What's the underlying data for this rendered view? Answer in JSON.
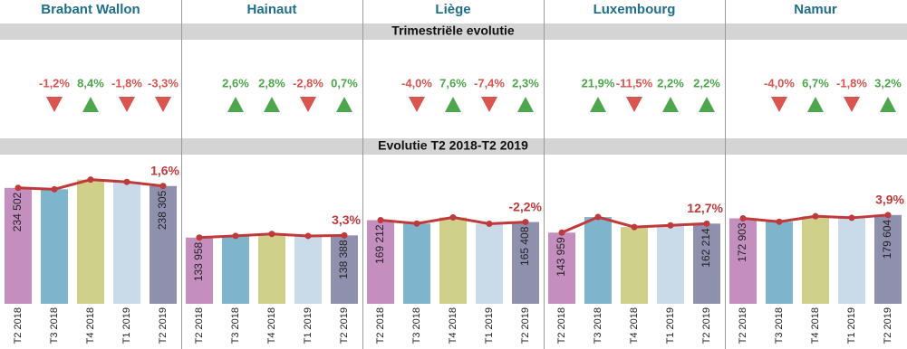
{
  "sections": {
    "quarterly": "Trimestriële evolutie",
    "yearly": "Evolutie T2 2018-T2 2019"
  },
  "chart_data": [
    {
      "type": "bar",
      "title": "Brabant Wallon",
      "categories": [
        "T2 2018",
        "T3 2018",
        "T4 2018",
        "T1 2019",
        "T2 2019"
      ],
      "values": [
        234502,
        231700,
        251200,
        246600,
        238305
      ],
      "value_labels": [
        "234 502",
        null,
        null,
        null,
        "238 305"
      ],
      "colors": [
        "#c48fbf",
        "#7fb5cc",
        "#cfd08a",
        "#c9dbe8",
        "#8f8fae"
      ],
      "line_color": "#c0393b",
      "ylim": [
        0,
        300000
      ],
      "quarterly_change": {
        "values": [
          -1.2,
          8.4,
          -1.8,
          -3.3
        ],
        "value_labels": [
          "-1,2%",
          "8,4%",
          "-1,8%",
          "-3,3%"
        ]
      },
      "yearly_change": {
        "value": 1.6,
        "label": "1,6%"
      }
    },
    {
      "type": "bar",
      "title": "Hainaut",
      "categories": [
        "T2 2018",
        "T3 2018",
        "T4 2018",
        "T1 2019",
        "T2 2019"
      ],
      "values": [
        133958,
        137400,
        141300,
        137300,
        138388
      ],
      "value_labels": [
        "133 958",
        null,
        null,
        null,
        "138 388"
      ],
      "colors": [
        "#c48fbf",
        "#7fb5cc",
        "#cfd08a",
        "#c9dbe8",
        "#8f8fae"
      ],
      "line_color": "#c0393b",
      "ylim": [
        0,
        300000
      ],
      "quarterly_change": {
        "values": [
          2.6,
          2.8,
          -2.8,
          0.7
        ],
        "value_labels": [
          "2,6%",
          "2,8%",
          "-2,8%",
          "0,7%"
        ]
      },
      "yearly_change": {
        "value": 3.3,
        "label": "3,3%"
      }
    },
    {
      "type": "bar",
      "title": "Liège",
      "categories": [
        "T2 2018",
        "T3 2018",
        "T4 2018",
        "T1 2019",
        "T2 2019"
      ],
      "values": [
        169212,
        162400,
        174800,
        161900,
        165408
      ],
      "value_labels": [
        "169 212",
        null,
        null,
        null,
        "165 408"
      ],
      "colors": [
        "#c48fbf",
        "#7fb5cc",
        "#cfd08a",
        "#c9dbe8",
        "#8f8fae"
      ],
      "line_color": "#c0393b",
      "ylim": [
        0,
        300000
      ],
      "quarterly_change": {
        "values": [
          -4.0,
          7.6,
          -7.4,
          2.3
        ],
        "value_labels": [
          "-4,0%",
          "7,6%",
          "-7,4%",
          "2,3%"
        ]
      },
      "yearly_change": {
        "value": -2.2,
        "label": "-2,2%"
      }
    },
    {
      "type": "bar",
      "title": "Luxembourg",
      "categories": [
        "T2 2018",
        "T3 2018",
        "T4 2018",
        "T1 2019",
        "T2 2019"
      ],
      "values": [
        143959,
        175500,
        155300,
        158700,
        162214
      ],
      "value_labels": [
        "143 959",
        null,
        null,
        null,
        "162 214"
      ],
      "colors": [
        "#c48fbf",
        "#7fb5cc",
        "#cfd08a",
        "#c9dbe8",
        "#8f8fae"
      ],
      "line_color": "#c0393b",
      "ylim": [
        0,
        300000
      ],
      "quarterly_change": {
        "values": [
          21.9,
          -11.5,
          2.2,
          2.2
        ],
        "value_labels": [
          "21,9%",
          "-11,5%",
          "2,2%",
          "2,2%"
        ]
      },
      "yearly_change": {
        "value": 12.7,
        "label": "12,7%"
      }
    },
    {
      "type": "bar",
      "title": "Namur",
      "categories": [
        "T2 2018",
        "T3 2018",
        "T4 2018",
        "T1 2019",
        "T2 2019"
      ],
      "values": [
        172903,
        166000,
        177100,
        173900,
        179604
      ],
      "value_labels": [
        "172 903",
        null,
        null,
        null,
        "179 604"
      ],
      "colors": [
        "#c48fbf",
        "#7fb5cc",
        "#cfd08a",
        "#c9dbe8",
        "#8f8fae"
      ],
      "line_color": "#c0393b",
      "ylim": [
        0,
        300000
      ],
      "quarterly_change": {
        "values": [
          -4.0,
          6.7,
          -1.8,
          3.2
        ],
        "value_labels": [
          "-4,0%",
          "6,7%",
          "-1,8%",
          "3,2%"
        ]
      },
      "yearly_change": {
        "value": 3.9,
        "label": "3,9%"
      }
    }
  ]
}
